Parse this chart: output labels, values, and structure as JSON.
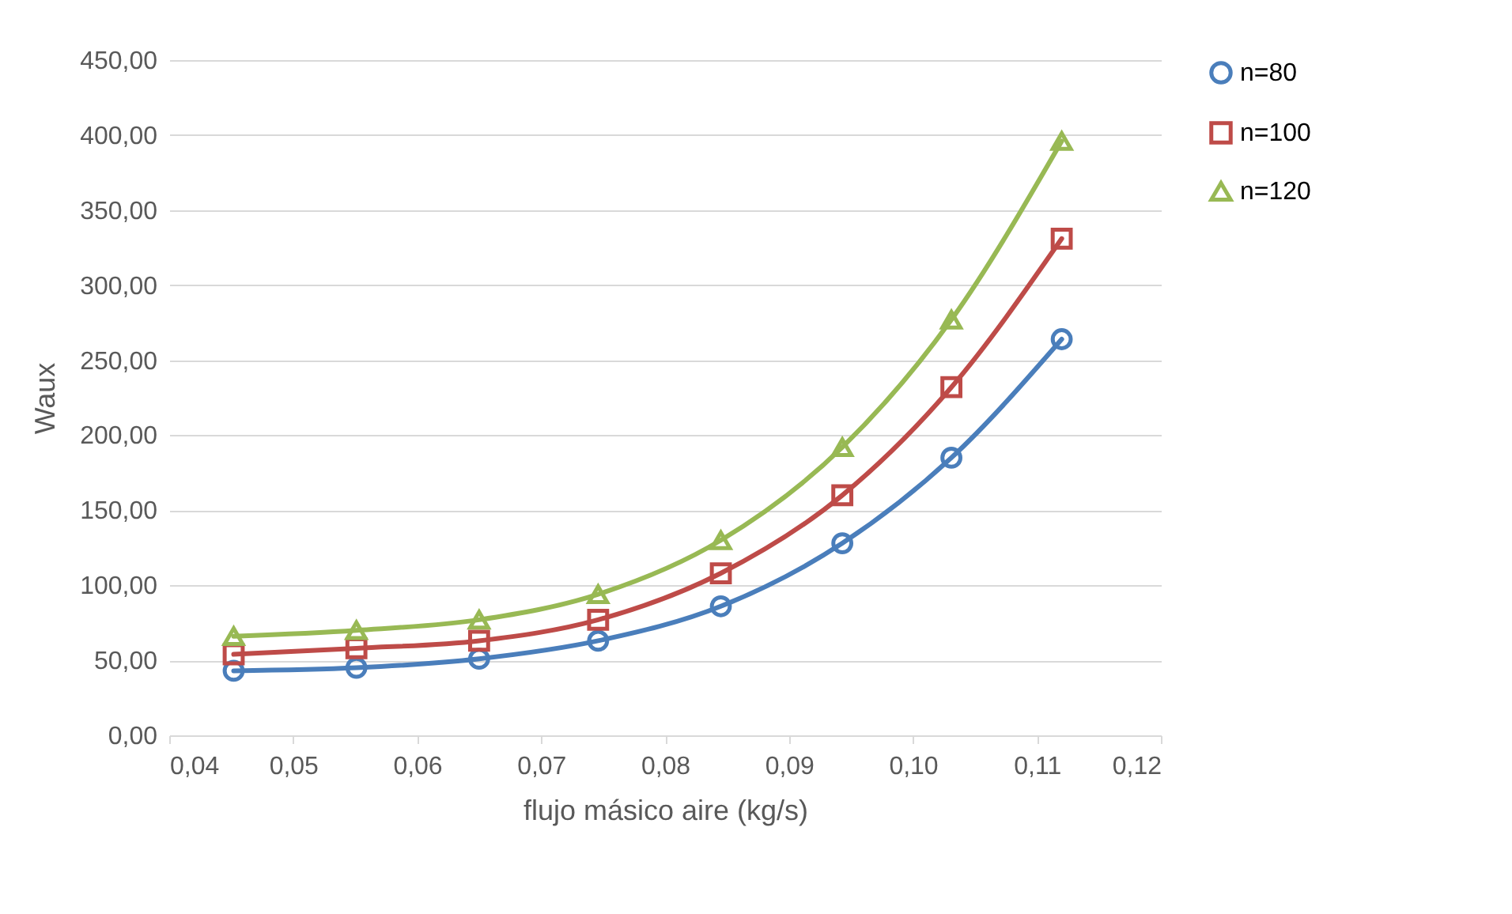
{
  "chart_data": {
    "type": "line",
    "xlabel": "flujo másico aire (kg/s)",
    "ylabel": "Waux",
    "x": [
      0.0452,
      0.0551,
      0.065,
      0.0746,
      0.0845,
      0.0943,
      0.1031,
      0.112
    ],
    "series": [
      {
        "name": "n=80",
        "color": "#4a7ebb",
        "marker": "circle",
        "values": [
          43,
          45,
          51,
          63,
          86,
          128,
          185,
          264
        ]
      },
      {
        "name": "n=100",
        "color": "#be4b48",
        "marker": "square",
        "values": [
          54,
          58,
          63,
          77,
          108,
          160,
          232,
          331
        ]
      },
      {
        "name": "n=120",
        "color": "#98b954",
        "marker": "triangle",
        "values": [
          66,
          70,
          77,
          94,
          130,
          192,
          277,
          396
        ]
      }
    ],
    "xlim": [
      0.04,
      0.12
    ],
    "ylim": [
      0,
      450
    ],
    "xticks": [
      {
        "value": 0.04,
        "label": "0,04"
      },
      {
        "value": 0.05,
        "label": "0,05"
      },
      {
        "value": 0.06,
        "label": "0,06"
      },
      {
        "value": 0.07,
        "label": "0,07"
      },
      {
        "value": 0.08,
        "label": "0,08"
      },
      {
        "value": 0.09,
        "label": "0,09"
      },
      {
        "value": 0.1,
        "label": "0,10"
      },
      {
        "value": 0.11,
        "label": "0,11"
      },
      {
        "value": 0.12,
        "label": "0,12"
      }
    ],
    "yticks": [
      {
        "value": 0,
        "label": "0,00"
      },
      {
        "value": 50,
        "label": "50,00"
      },
      {
        "value": 100,
        "label": "100,00"
      },
      {
        "value": 150,
        "label": "150,00"
      },
      {
        "value": 200,
        "label": "200,00"
      },
      {
        "value": 250,
        "label": "250,00"
      },
      {
        "value": 300,
        "label": "300,00"
      },
      {
        "value": 350,
        "label": "350,00"
      },
      {
        "value": 400,
        "label": "400,00"
      },
      {
        "value": 450,
        "label": "450,00"
      }
    ],
    "grid": "y",
    "legend": "right"
  }
}
